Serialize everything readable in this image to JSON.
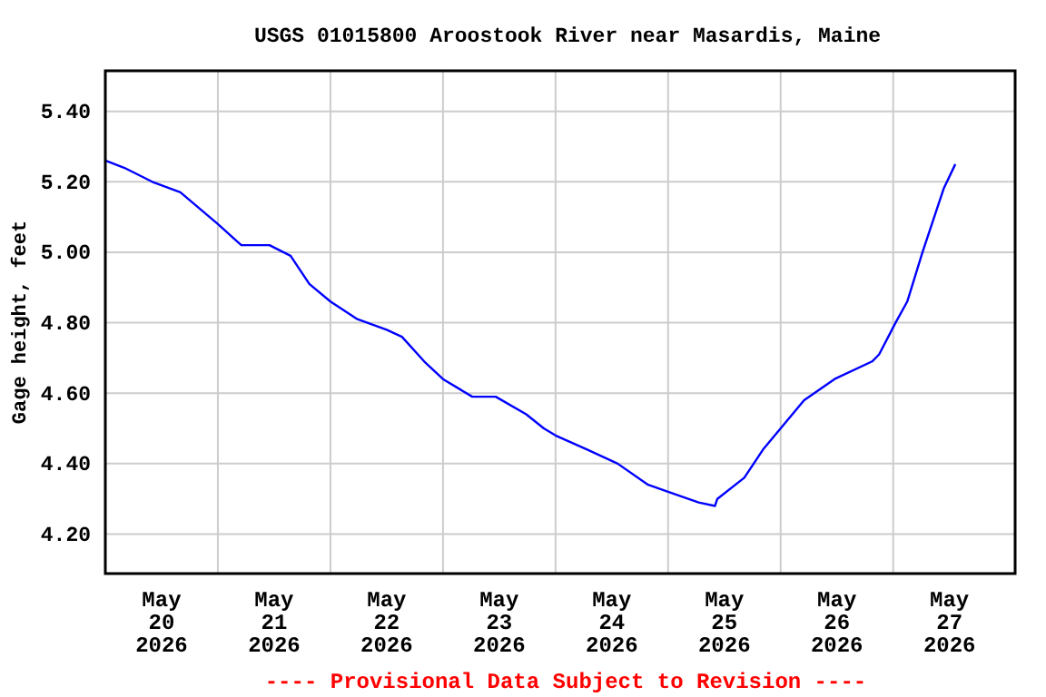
{
  "chart_data": {
    "type": "line",
    "title": "USGS 01015800 Aroostook River near Masardis, Maine",
    "ylabel": "Gage height, feet",
    "annotations": [
      "---- Provisional Data Subject to Revision ----"
    ],
    "xlim": [
      "2026-05-20T00:00",
      "2026-05-28T02:00"
    ],
    "xticks": [
      {
        "value": "2026-05-20T12:00",
        "label": "May\n20\n2026"
      },
      {
        "value": "2026-05-21T00:00",
        "label": null
      },
      {
        "value": "2026-05-21T12:00",
        "label": "May\n21\n2026"
      },
      {
        "value": "2026-05-22T00:00",
        "label": null
      },
      {
        "value": "2026-05-22T12:00",
        "label": "May\n22\n2026"
      },
      {
        "value": "2026-05-23T00:00",
        "label": null
      },
      {
        "value": "2026-05-23T12:00",
        "label": "May\n23\n2026"
      },
      {
        "value": "2026-05-24T00:00",
        "label": null
      },
      {
        "value": "2026-05-24T12:00",
        "label": "May\n24\n2026"
      },
      {
        "value": "2026-05-25T00:00",
        "label": null
      },
      {
        "value": "2026-05-25T12:00",
        "label": "May\n25\n2026"
      },
      {
        "value": "2026-05-26T00:00",
        "label": null
      },
      {
        "value": "2026-05-26T12:00",
        "label": "May\n26\n2026"
      },
      {
        "value": "2026-05-27T00:00",
        "label": null
      },
      {
        "value": "2026-05-27T12:00",
        "label": "May\n27\n2026"
      }
    ],
    "ylim": [
      4.088,
      5.515
    ],
    "yticks": [
      {
        "value": 4.2,
        "label": "4.20"
      },
      {
        "value": 4.4,
        "label": "4.40"
      },
      {
        "value": 4.6,
        "label": "4.60"
      },
      {
        "value": 4.8,
        "label": "4.80"
      },
      {
        "value": 5.0,
        "label": "5.00"
      },
      {
        "value": 5.2,
        "label": "5.20"
      },
      {
        "value": 5.4,
        "label": "5.40"
      }
    ],
    "grid": true,
    "marker": "none",
    "line_style": "solid",
    "series": [
      {
        "color": "#0000ff",
        "x": [
          "2026-05-20T00:00",
          "2026-05-20T04:00",
          "2026-05-20T10:00",
          "2026-05-20T16:00",
          "2026-05-21T00:00",
          "2026-05-21T05:00",
          "2026-05-21T11:00",
          "2026-05-21T15:30",
          "2026-05-21T19:30",
          "2026-05-22T00:00",
          "2026-05-22T05:45",
          "2026-05-22T12:00",
          "2026-05-22T15:15",
          "2026-05-22T20:00",
          "2026-05-23T00:00",
          "2026-05-23T06:15",
          "2026-05-23T11:15",
          "2026-05-23T17:45",
          "2026-05-23T21:30",
          "2026-05-24T00:00",
          "2026-05-24T06:45",
          "2026-05-24T13:15",
          "2026-05-24T19:45",
          "2026-05-25T00:00",
          "2026-05-25T06:30",
          "2026-05-25T10:00",
          "2026-05-25T10:30",
          "2026-05-25T16:15",
          "2026-05-25T20:15",
          "2026-05-26T00:00",
          "2026-05-26T05:00",
          "2026-05-26T11:30",
          "2026-05-26T19:30",
          "2026-05-26T21:00",
          "2026-05-27T00:30",
          "2026-05-27T03:00",
          "2026-05-27T06:15",
          "2026-05-27T08:15",
          "2026-05-27T10:45",
          "2026-05-27T13:15"
        ],
        "values": [
          5.26,
          5.24,
          5.2,
          5.17,
          5.08,
          5.02,
          5.02,
          4.99,
          4.91,
          4.86,
          4.81,
          4.78,
          4.76,
          4.69,
          4.64,
          4.59,
          4.59,
          4.54,
          4.5,
          4.48,
          4.44,
          4.4,
          4.34,
          4.32,
          4.29,
          4.28,
          4.3,
          4.36,
          4.44,
          4.5,
          4.58,
          4.64,
          4.69,
          4.71,
          4.8,
          4.86,
          5.0,
          5.08,
          5.18,
          5.25
        ]
      }
    ]
  }
}
